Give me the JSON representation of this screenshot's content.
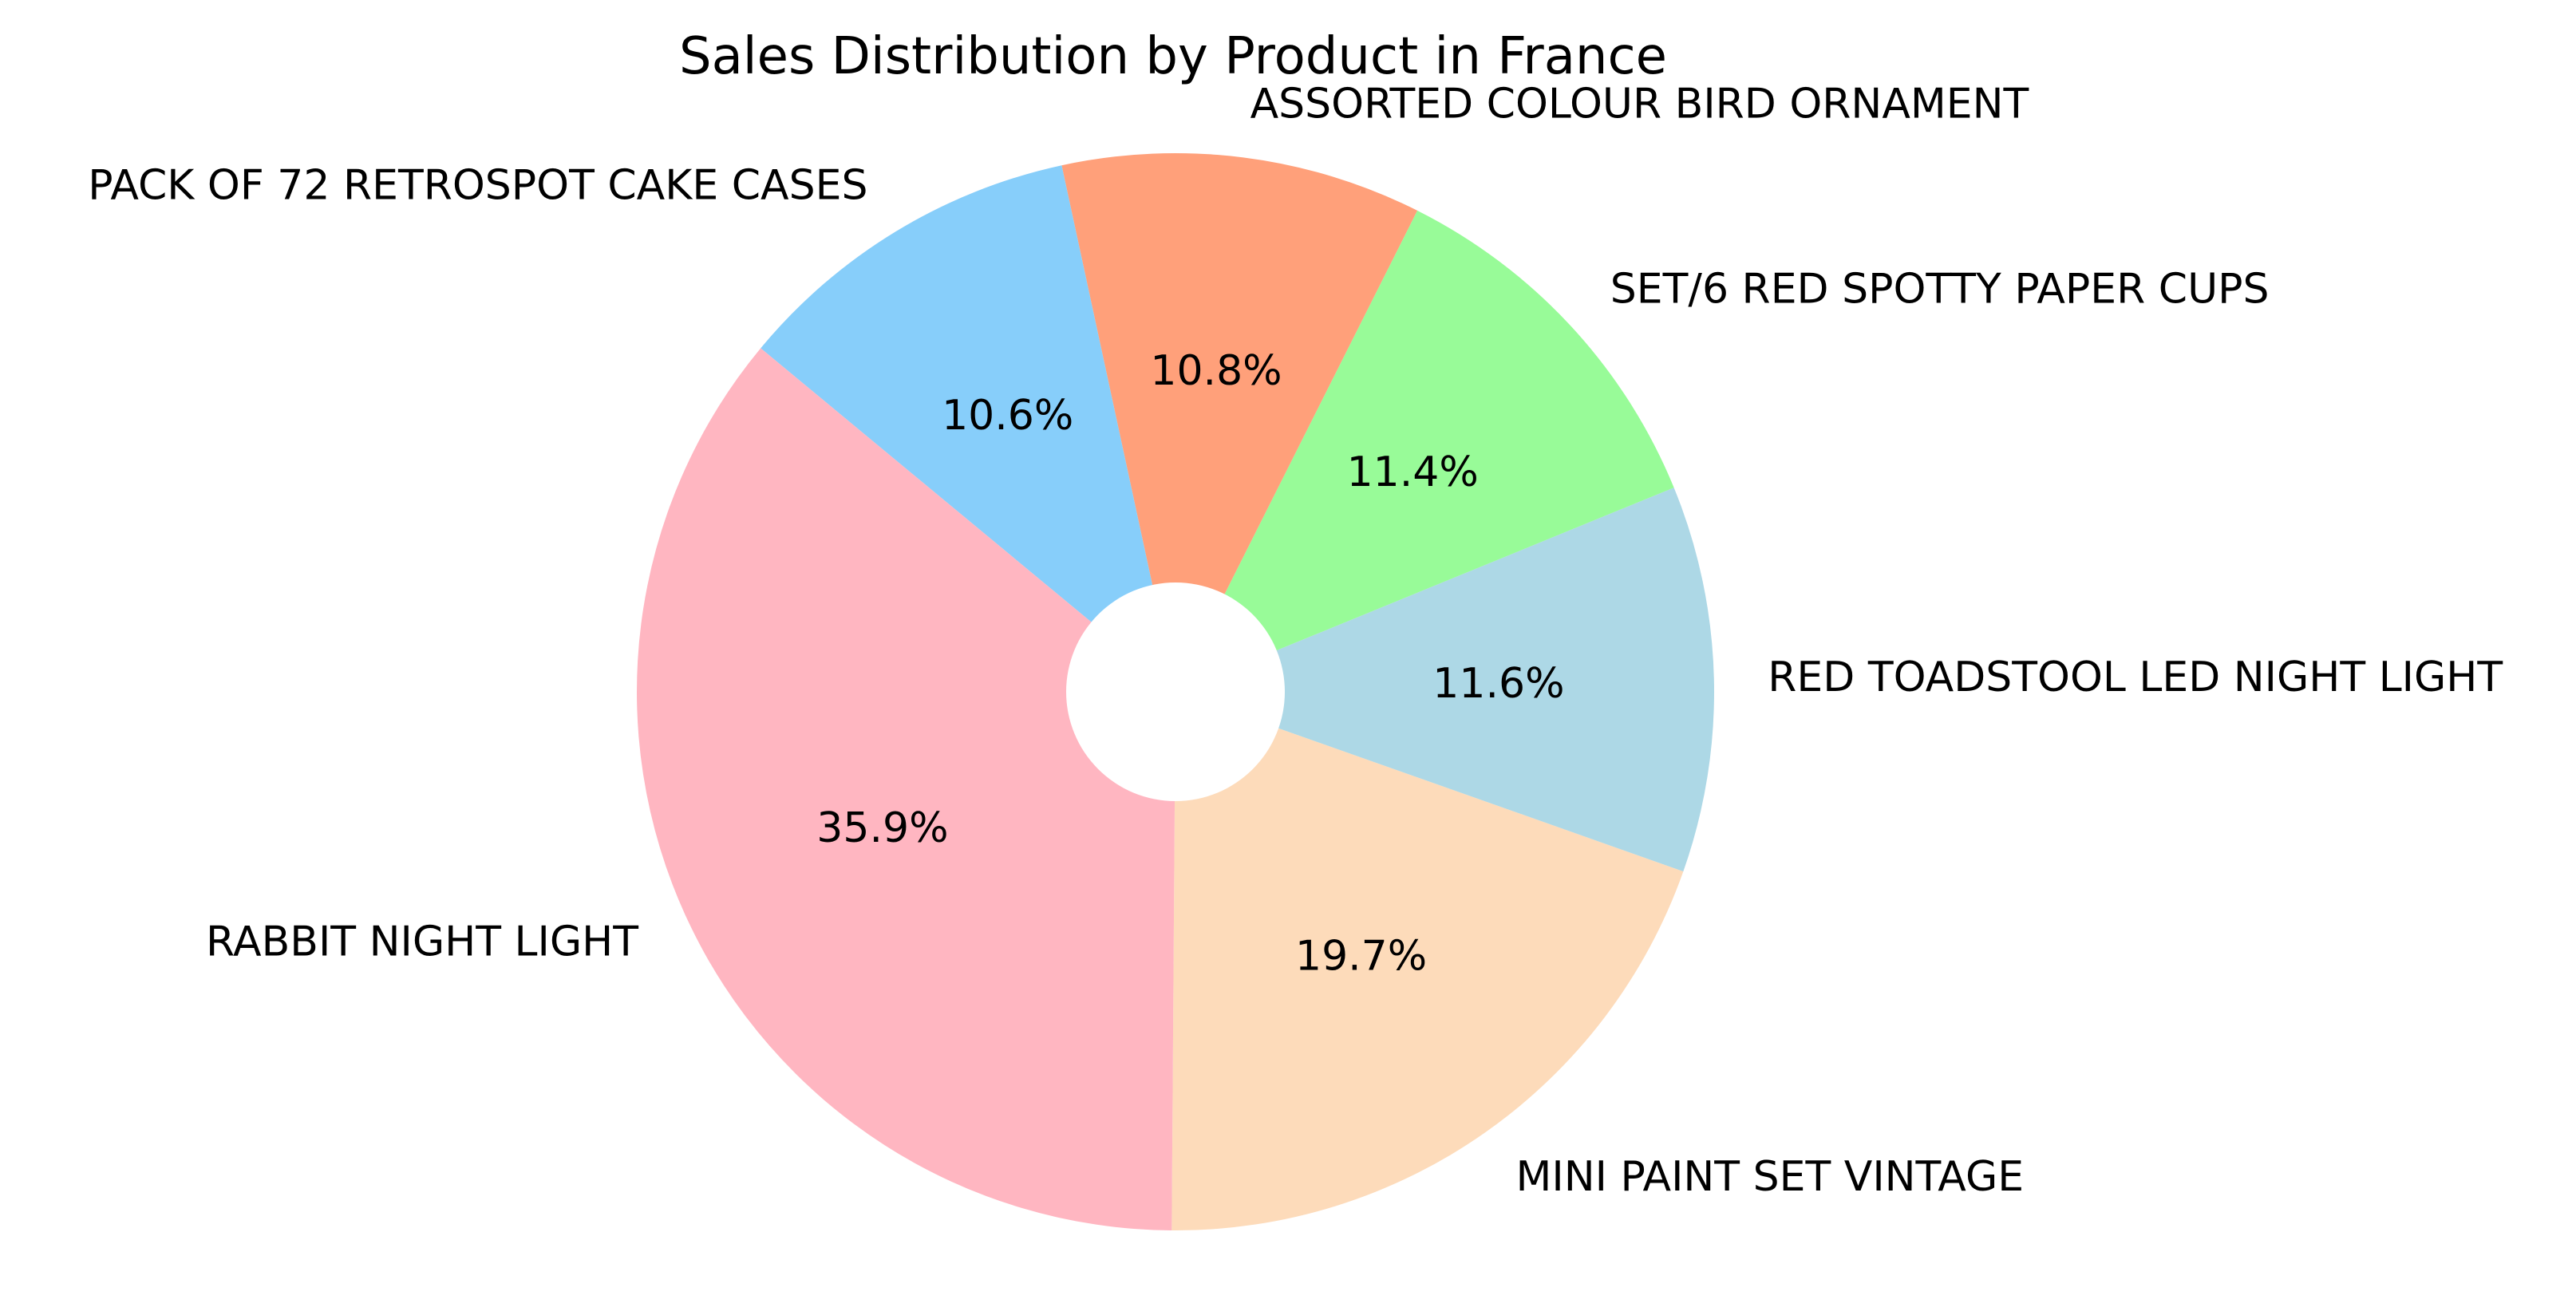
{
  "chart_data": {
    "type": "pie",
    "title": "Sales Distribution by Product in France",
    "donut": true,
    "start_angle_deg": -90.4,
    "direction": "counterclockwise",
    "slices": [
      {
        "label": "MINI PAINT SET VINTAGE",
        "value": 19.7,
        "pct_label": "19.7%",
        "color": "#fddbba"
      },
      {
        "label": "RED TOADSTOOL LED NIGHT LIGHT",
        "value": 11.6,
        "pct_label": "11.6%",
        "color": "#add8e6"
      },
      {
        "label": "SET/6 RED SPOTTY PAPER CUPS",
        "value": 11.4,
        "pct_label": "11.4%",
        "color": "#98fb98"
      },
      {
        "label": "ASSORTED COLOUR BIRD ORNAMENT",
        "value": 10.8,
        "pct_label": "10.8%",
        "color": "#ffa07a"
      },
      {
        "label": "PACK OF 72 RETROSPOT CAKE CASES",
        "value": 10.6,
        "pct_label": "10.6%",
        "color": "#87cefa"
      },
      {
        "label": "RABBIT NIGHT LIGHT",
        "value": 35.9,
        "pct_label": "35.9%",
        "color": "#ffb6c1"
      }
    ]
  }
}
